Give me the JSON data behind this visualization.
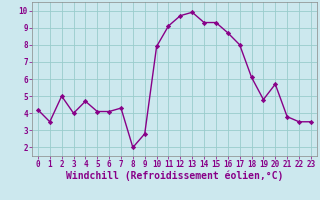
{
  "x": [
    0,
    1,
    2,
    3,
    4,
    5,
    6,
    7,
    8,
    9,
    10,
    11,
    12,
    13,
    14,
    15,
    16,
    17,
    18,
    19,
    20,
    21,
    22,
    23
  ],
  "y": [
    4.2,
    3.5,
    5.0,
    4.0,
    4.7,
    4.1,
    4.1,
    4.3,
    2.0,
    2.8,
    7.9,
    9.1,
    9.7,
    9.9,
    9.3,
    9.3,
    8.7,
    8.0,
    6.1,
    4.8,
    5.7,
    3.8,
    3.5,
    3.5
  ],
  "line_color": "#880088",
  "marker": "D",
  "marker_size": 2.2,
  "bg_color": "#cce8ee",
  "grid_color": "#99cccc",
  "xlabel": "Windchill (Refroidissement éolien,°C)",
  "xlim": [
    -0.5,
    23.5
  ],
  "ylim": [
    1.5,
    10.5
  ],
  "yticks": [
    2,
    3,
    4,
    5,
    6,
    7,
    8,
    9,
    10
  ],
  "xticks": [
    0,
    1,
    2,
    3,
    4,
    5,
    6,
    7,
    8,
    9,
    10,
    11,
    12,
    13,
    14,
    15,
    16,
    17,
    18,
    19,
    20,
    21,
    22,
    23
  ],
  "tick_fontsize": 5.5,
  "xlabel_fontsize": 7.0,
  "linewidth": 1.0,
  "spine_color": "#888888"
}
